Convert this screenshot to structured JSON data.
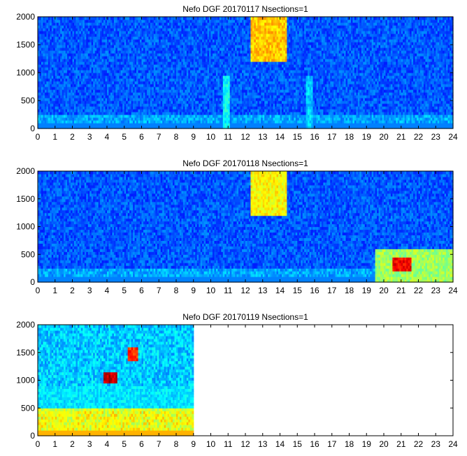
{
  "chart_data": [
    {
      "type": "heatmap",
      "title": "Nefo DGF 20170117 Nsections=1",
      "xlabel": "",
      "ylabel": "",
      "xlim": [
        0,
        24
      ],
      "ylim": [
        0,
        2000
      ],
      "x_ticks": [
        "0",
        "1",
        "2",
        "3",
        "4",
        "5",
        "6",
        "7",
        "8",
        "9",
        "10",
        "11",
        "12",
        "13",
        "14",
        "15",
        "16",
        "17",
        "18",
        "19",
        "20",
        "21",
        "22",
        "23",
        "24"
      ],
      "y_ticks": [
        "0",
        "500",
        "1000",
        "1500",
        "2000"
      ],
      "data_x_range": [
        0,
        24
      ],
      "colorscale": "jet",
      "features": [
        {
          "x": [
            10.7,
            11.0
          ],
          "y": [
            0,
            900
          ],
          "level": 0.4
        },
        {
          "x": [
            15.5,
            15.8
          ],
          "y": [
            0,
            900
          ],
          "level": 0.35
        },
        {
          "x": [
            12.3,
            14.3
          ],
          "y": [
            1200,
            2000
          ],
          "level": 0.7
        }
      ]
    },
    {
      "type": "heatmap",
      "title": "Nefo DGF 20170118 Nsections=1",
      "xlabel": "",
      "ylabel": "",
      "xlim": [
        0,
        24
      ],
      "ylim": [
        0,
        2000
      ],
      "x_ticks": [
        "0",
        "1",
        "2",
        "3",
        "4",
        "5",
        "6",
        "7",
        "8",
        "9",
        "10",
        "11",
        "12",
        "13",
        "14",
        "15",
        "16",
        "17",
        "18",
        "19",
        "20",
        "21",
        "22",
        "23",
        "24"
      ],
      "y_ticks": [
        "0",
        "500",
        "1000",
        "1500",
        "2000"
      ],
      "data_x_range": [
        0,
        24
      ],
      "colorscale": "jet",
      "features": [
        {
          "x": [
            19.5,
            24.0
          ],
          "y": [
            0,
            550
          ],
          "level": 0.55
        },
        {
          "x": [
            20.5,
            21.5
          ],
          "y": [
            200,
            400
          ],
          "level": 0.9
        },
        {
          "x": [
            12.3,
            14.3
          ],
          "y": [
            1200,
            2000
          ],
          "level": 0.65
        }
      ]
    },
    {
      "type": "heatmap",
      "title": "Nefo DGF 20170119 Nsections=1",
      "xlabel": "",
      "ylabel": "",
      "xlim": [
        0,
        24
      ],
      "ylim": [
        0,
        2000
      ],
      "x_ticks": [
        "0",
        "1",
        "2",
        "3",
        "4",
        "5",
        "6",
        "7",
        "8",
        "9",
        "10",
        "11",
        "12",
        "13",
        "14",
        "15",
        "16",
        "17",
        "18",
        "19",
        "20",
        "21",
        "22",
        "23",
        "24"
      ],
      "y_ticks": [
        "0",
        "500",
        "1000",
        "1500",
        "2000"
      ],
      "data_x_range": [
        0,
        9
      ],
      "colorscale": "jet",
      "features": [
        {
          "x": [
            0,
            9
          ],
          "y": [
            0,
            450
          ],
          "level": 0.6
        },
        {
          "x": [
            3.8,
            4.6
          ],
          "y": [
            950,
            1100
          ],
          "level": 0.95
        },
        {
          "x": [
            5.2,
            5.8
          ],
          "y": [
            1350,
            1550
          ],
          "level": 0.85
        }
      ]
    }
  ]
}
